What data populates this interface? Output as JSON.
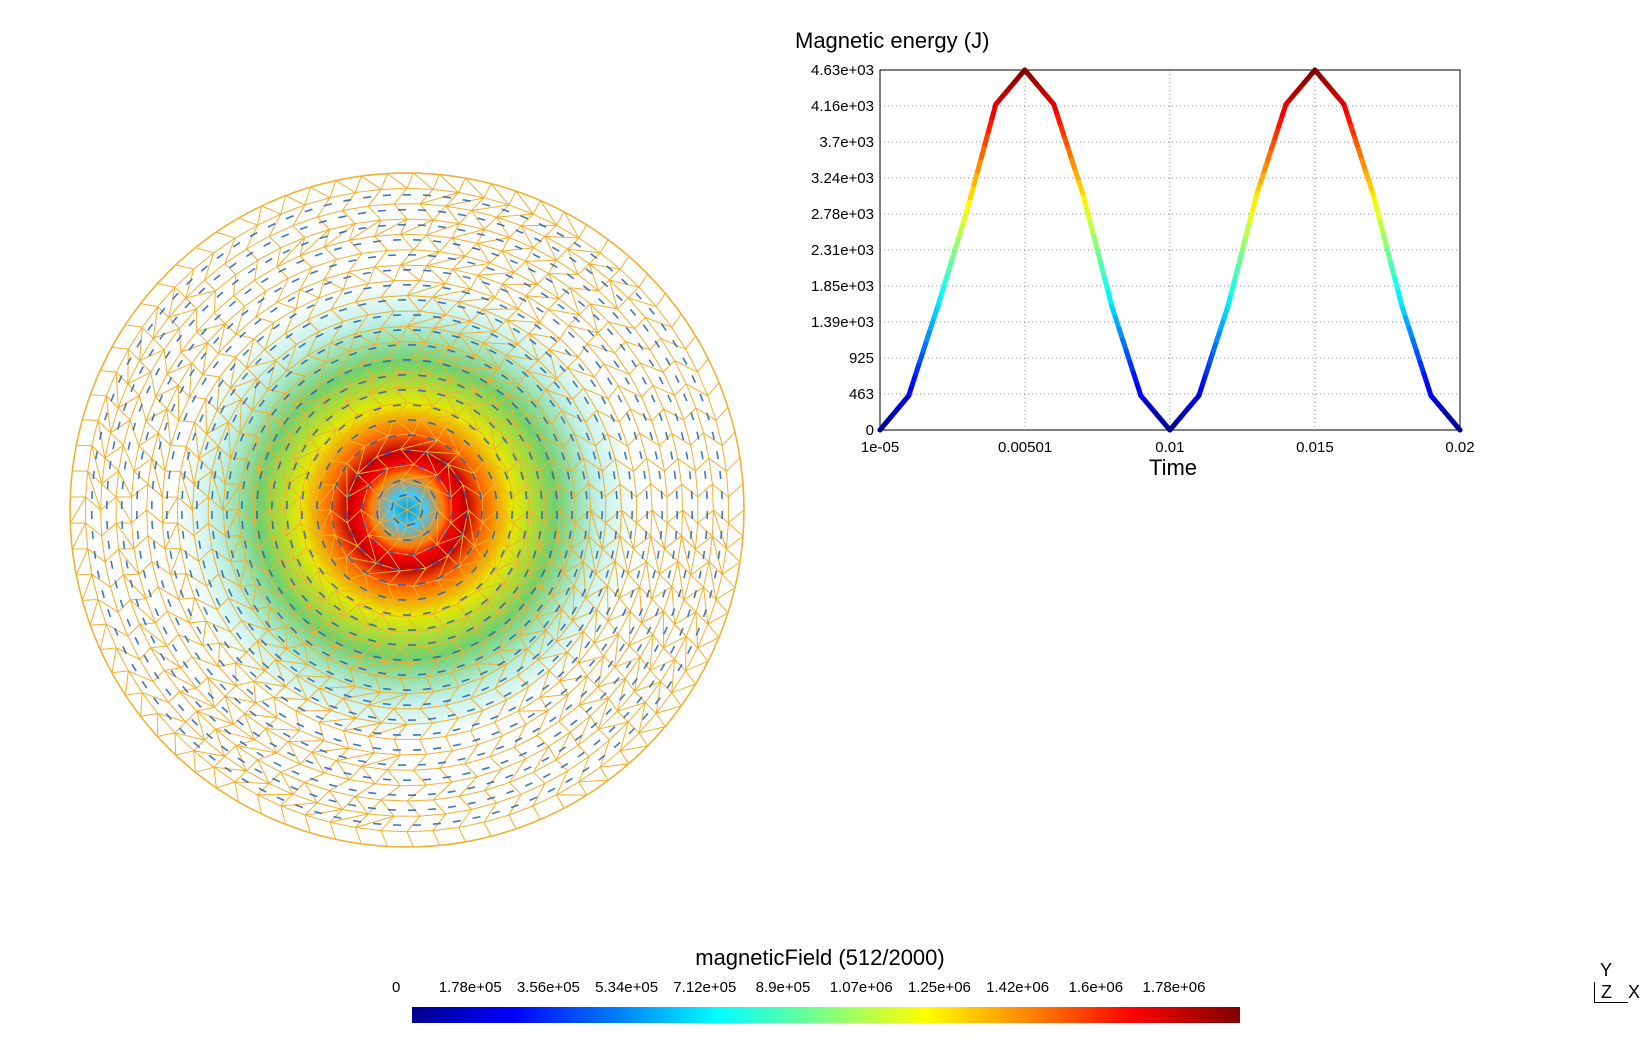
{
  "colors": {
    "mesh": "#f0b030",
    "arrow": "#1f5fb0",
    "grid": "#888888",
    "background": "#ffffff"
  },
  "colormap": [
    "#00008f",
    "#0000ff",
    "#0080ff",
    "#00ffff",
    "#80ff80",
    "#ffff00",
    "#ff8000",
    "#ff0000",
    "#800000"
  ],
  "colorbar": {
    "title": "magneticField (512/2000)",
    "ticks": [
      "0",
      "1.78e+05",
      "3.56e+05",
      "5.34e+05",
      "7.12e+05",
      "8.9e+05",
      "1.07e+06",
      "1.25e+06",
      "1.42e+06",
      "1.6e+06",
      "1.78e+06"
    ]
  },
  "axes_triad": {
    "y": "Y",
    "z": "Z",
    "x": "X"
  },
  "chart_data": {
    "type": "line",
    "title": "Magnetic energy (J)",
    "xlabel": "Time",
    "ylabel": "",
    "x_ticks": [
      "1e-05",
      "0.00501",
      "0.01",
      "0.015",
      "0.02"
    ],
    "x_tick_values": [
      1e-05,
      0.00501,
      0.01,
      0.015,
      0.02
    ],
    "y_ticks": [
      "0",
      "463",
      "925",
      "1.39e+03",
      "1.85e+03",
      "2.31e+03",
      "2.78e+03",
      "3.24e+03",
      "3.7e+03",
      "4.16e+03",
      "4.63e+03"
    ],
    "xlim": [
      1e-05,
      0.02
    ],
    "ylim": [
      0,
      4630
    ],
    "grid": true,
    "line_colored_by_value": true,
    "series": [
      {
        "x": [
          1e-05,
          0.001,
          0.002,
          0.003,
          0.004,
          0.005,
          0.006,
          0.007,
          0.008,
          0.009,
          0.01,
          0.011,
          0.012,
          0.013,
          0.014,
          0.015,
          0.016,
          0.017,
          0.018,
          0.019,
          0.02
        ],
        "y": [
          0,
          442,
          1591,
          2813,
          4188,
          4630,
          4188,
          3039,
          1591,
          442,
          0,
          442,
          1591,
          3039,
          4188,
          4630,
          4188,
          3039,
          1591,
          442,
          0
        ]
      }
    ]
  }
}
